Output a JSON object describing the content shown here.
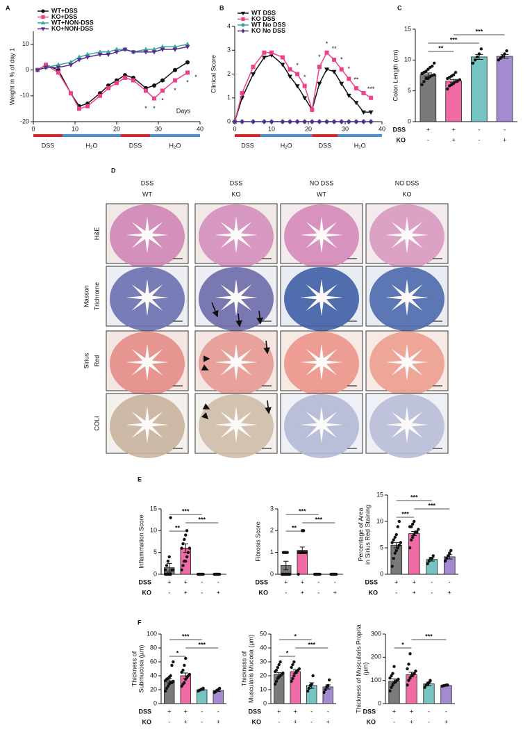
{
  "chart_data": [
    {
      "type": "line",
      "panel": "A",
      "ylabel": "Weight in % of day 1",
      "xlim": [
        0,
        40
      ],
      "xticks": [
        0,
        10,
        20,
        30,
        40
      ],
      "ylim": [
        -20,
        15
      ],
      "yticks": [
        -20,
        -10,
        0,
        10
      ],
      "x": [
        1,
        3,
        6,
        9,
        11,
        13,
        16,
        18,
        20,
        22,
        24,
        27,
        29,
        31,
        34,
        37
      ],
      "series": [
        {
          "name": "WT+DSS",
          "color": "#111111",
          "marker": "circle",
          "values": [
            0,
            2,
            0,
            -9,
            -14,
            -13,
            -9,
            -6,
            -4,
            -2,
            -3,
            -7,
            -6,
            -4,
            0,
            3
          ]
        },
        {
          "name": "KO+DSS",
          "color": "#ee3f8b",
          "marker": "square",
          "values": [
            0,
            2,
            -1,
            -9,
            -15,
            -14,
            -10,
            -7,
            -5,
            -3,
            -4,
            -8,
            -11,
            -8,
            -4,
            -1
          ]
        },
        {
          "name": "WT+NON-DSS",
          "color": "#3aa59a",
          "marker": "triangle-up",
          "values": [
            0,
            1,
            2,
            3,
            5,
            6,
            7,
            7,
            8,
            8,
            7,
            8,
            8,
            9,
            9,
            10
          ]
        },
        {
          "name": "KO+NON-DSS",
          "color": "#5b2c8f",
          "marker": "triangle-down",
          "values": [
            0,
            1,
            1,
            2,
            4,
            5,
            6,
            6,
            7,
            8,
            7,
            7,
            7,
            8,
            8,
            9
          ]
        }
      ],
      "phases": [
        {
          "label": "DSS",
          "start": 0,
          "end": 7,
          "color": "#e02424"
        },
        {
          "label": "H₂O",
          "start": 7,
          "end": 21,
          "color": "#4a90d0"
        },
        {
          "label": "DSS",
          "start": 21,
          "end": 28,
          "color": "#e02424"
        },
        {
          "label": "H₂O",
          "start": 28,
          "end": 40,
          "color": "#4a90d0"
        }
      ],
      "annotations": [
        {
          "text": "Days",
          "x": 36,
          "y": -16
        },
        {
          "text": "*",
          "x": 27,
          "y": -15
        },
        {
          "text": "*",
          "x": 29,
          "y": -15
        },
        {
          "text": "*",
          "x": 31,
          "y": -12
        },
        {
          "text": "*",
          "x": 34,
          "y": -8
        },
        {
          "text": "*",
          "x": 37,
          "y": -5
        },
        {
          "text": "*",
          "x": 39,
          "y": -3
        }
      ]
    },
    {
      "type": "line",
      "panel": "B",
      "ylabel": "Clinical Score",
      "xlim": [
        0,
        40
      ],
      "xticks": [
        0,
        10,
        20,
        30,
        40
      ],
      "ylim": [
        0,
        4
      ],
      "yticks": [
        0,
        1,
        2,
        3,
        4
      ],
      "x": [
        0,
        2,
        5,
        8,
        10,
        13,
        15,
        17,
        19,
        21,
        23,
        25,
        27,
        29,
        31,
        33,
        35,
        37
      ],
      "series": [
        {
          "name": "WT DSS",
          "color": "#111111",
          "marker": "triangle-down",
          "values": [
            0,
            1,
            2,
            2.7,
            2.8,
            2.4,
            1.9,
            1.5,
            1,
            0.5,
            1.6,
            2.2,
            2.1,
            1.6,
            1.1,
            0.8,
            0.4,
            0.4
          ]
        },
        {
          "name": "KO DSS",
          "color": "#ee3f8b",
          "marker": "square",
          "values": [
            0,
            1.2,
            2.3,
            2.9,
            2.9,
            2.7,
            2.2,
            2,
            1.5,
            0.5,
            2.3,
            2.9,
            2.6,
            2.2,
            1.8,
            1.4,
            1.2,
            1
          ]
        },
        {
          "name": "WT No DSS",
          "color": "#3aa59a",
          "marker": "circle",
          "values": [
            0,
            0,
            0,
            0,
            0,
            0,
            0,
            0,
            0,
            0,
            0,
            0,
            0,
            0,
            0,
            0,
            0,
            0
          ]
        },
        {
          "name": "KO No DSS",
          "color": "#5b2c8f",
          "marker": "diamond",
          "values": [
            0,
            0,
            0,
            0,
            0,
            0,
            0,
            0,
            0,
            0,
            0,
            0,
            0,
            0,
            0,
            0,
            0,
            0
          ]
        }
      ],
      "phases": [
        {
          "label": "DSS",
          "start": 0,
          "end": 7,
          "color": "#e02424"
        },
        {
          "label": "H₂O",
          "start": 7,
          "end": 21,
          "color": "#4a90d0"
        },
        {
          "label": "DSS",
          "start": 21,
          "end": 28,
          "color": "#e02424"
        },
        {
          "label": "H₂O",
          "start": 28,
          "end": 40,
          "color": "#4a90d0"
        }
      ],
      "annotations": [
        {
          "text": "*",
          "x": 17,
          "y": 2.35
        },
        {
          "text": "*",
          "x": 19,
          "y": 1.85
        },
        {
          "text": "*",
          "x": 23,
          "y": 2.7
        },
        {
          "text": "*",
          "x": 25,
          "y": 3.25
        },
        {
          "text": "**",
          "x": 27,
          "y": 3.05
        },
        {
          "text": "*",
          "x": 29,
          "y": 2.6
        },
        {
          "text": "*",
          "x": 31,
          "y": 2.2
        },
        {
          "text": "**",
          "x": 33,
          "y": 1.75
        },
        {
          "text": "***",
          "x": 37,
          "y": 1.35
        }
      ]
    },
    {
      "type": "bar",
      "panel": "C",
      "ylabel": [
        "Colon Length (cm)"
      ],
      "ylim": [
        0,
        15
      ],
      "yticks": [
        0,
        5,
        10,
        15
      ],
      "values": [
        7.6,
        6.6,
        10.5,
        10.6
      ],
      "errors": [
        0.3,
        0.25,
        0.4,
        0.3
      ],
      "colors": [
        "#7a7a7a",
        "#f06aa5",
        "#75c4c2",
        "#a48bd0"
      ],
      "points": [
        [
          6,
          6.5,
          7,
          7,
          7.3,
          7.5,
          7.6,
          7.8,
          8,
          8.2,
          8.5,
          8.8,
          9,
          9.5
        ],
        [
          5.3,
          5.8,
          6,
          6.2,
          6.5,
          6.6,
          6.8,
          7,
          7.2,
          7.4,
          7.6,
          8
        ],
        [
          9.5,
          10,
          10.5,
          11,
          11.8
        ],
        [
          10,
          10.3,
          10.6,
          11,
          11.5
        ]
      ],
      "brackets": [
        {
          "from": 0,
          "to": 1,
          "label": "**"
        },
        {
          "from": 0,
          "to": 2,
          "label": "***"
        },
        {
          "from": 1,
          "to": 3,
          "label": "***"
        }
      ],
      "conditions": [
        {
          "label": "DSS",
          "values": [
            "+",
            "+",
            "-",
            "-"
          ]
        },
        {
          "label": "KO",
          "values": [
            "-",
            "+",
            "-",
            "+"
          ]
        }
      ]
    },
    {
      "type": "bar",
      "panel": "E",
      "ylabel": [
        "Inflammation Score"
      ],
      "ylim": [
        0,
        15
      ],
      "yticks": [
        0,
        5,
        10,
        15
      ],
      "values": [
        1.5,
        6,
        0,
        0
      ],
      "errors": [
        1,
        1,
        0,
        0
      ],
      "colors": [
        "#7a7a7a",
        "#f06aa5",
        "#75c4c2",
        "#a48bd0"
      ],
      "points": [
        [
          0,
          0,
          0,
          0,
          0,
          1,
          1,
          1,
          2,
          3,
          4,
          13
        ],
        [
          1,
          2,
          3,
          3,
          4,
          5,
          6,
          6,
          7,
          8,
          9,
          10
        ],
        [
          0,
          0,
          0,
          0,
          0
        ],
        [
          0,
          0,
          0,
          0,
          0
        ]
      ],
      "brackets": [
        {
          "from": 0,
          "to": 1,
          "label": "**"
        },
        {
          "from": 1,
          "to": 3,
          "label": "***"
        },
        {
          "from": 0,
          "to": 2,
          "label": "***"
        }
      ],
      "conditions": [
        {
          "label": "DSS",
          "values": [
            "+",
            "+",
            "-",
            "-"
          ]
        },
        {
          "label": "KO",
          "values": [
            "-",
            "+",
            "-",
            "+"
          ]
        }
      ]
    },
    {
      "type": "bar",
      "ylabel": [
        "Fibrosis Score"
      ],
      "ylim": [
        0,
        3
      ],
      "yticks": [
        0,
        1,
        2,
        3
      ],
      "values": [
        0.4,
        1.1,
        0,
        0
      ],
      "errors": [
        0.2,
        0.15,
        0,
        0
      ],
      "colors": [
        "#7a7a7a",
        "#f06aa5",
        "#75c4c2",
        "#a48bd0"
      ],
      "points": [
        [
          0,
          0,
          0,
          0,
          0,
          0,
          0,
          0,
          1,
          1,
          1,
          1
        ],
        [
          0,
          1,
          1,
          1,
          1,
          1,
          1,
          1,
          1,
          1,
          2,
          2
        ],
        [
          0,
          0,
          0,
          0,
          0
        ],
        [
          0,
          0,
          0,
          0,
          0
        ]
      ],
      "brackets": [
        {
          "from": 0,
          "to": 1,
          "label": "**"
        },
        {
          "from": 1,
          "to": 3,
          "label": "***"
        },
        {
          "from": 0,
          "to": 2,
          "label": "***"
        }
      ],
      "conditions": [
        {
          "label": "DSS",
          "values": [
            "+",
            "+",
            "-",
            "-"
          ]
        },
        {
          "label": "KO",
          "values": [
            "-",
            "+",
            "-",
            "+"
          ]
        }
      ]
    },
    {
      "type": "bar",
      "ylabel": [
        "Percentage of Area",
        "in Sirius Red Staining"
      ],
      "ylim": [
        0,
        15
      ],
      "yticks": [
        0,
        5,
        10,
        15
      ],
      "values": [
        5.5,
        7.7,
        2.8,
        3.3
      ],
      "errors": [
        0.5,
        0.4,
        0.3,
        0.4
      ],
      "colors": [
        "#7a7a7a",
        "#f06aa5",
        "#75c4c2",
        "#a48bd0"
      ],
      "points": [
        [
          1.5,
          3,
          4,
          4.5,
          5,
          5.5,
          6,
          6,
          6.5,
          7,
          7.5,
          9,
          10
        ],
        [
          5,
          6.5,
          7,
          7.5,
          8,
          8,
          8.5,
          9,
          9,
          9.5,
          10
        ],
        [
          2,
          2.5,
          3,
          3,
          3.5
        ],
        [
          2.5,
          3,
          3.5,
          4,
          4.5
        ]
      ],
      "brackets": [
        {
          "from": 0,
          "to": 1,
          "label": "***"
        },
        {
          "from": 1,
          "to": 3,
          "label": "***"
        },
        {
          "from": 0,
          "to": 2,
          "label": "***"
        }
      ],
      "conditions": [
        {
          "label": "DSS",
          "values": [
            "+",
            "+",
            "-",
            "-"
          ]
        },
        {
          "label": "KO",
          "values": [
            "-",
            "+",
            "-",
            "+"
          ]
        }
      ]
    },
    {
      "type": "bar",
      "panel": "F",
      "ylabel": [
        "Thickness of",
        "Submucosa (µm)"
      ],
      "ylim": [
        0,
        100
      ],
      "yticks": [
        0,
        20,
        40,
        60,
        80,
        100
      ],
      "values": [
        33,
        40,
        20,
        19
      ],
      "errors": [
        3,
        4,
        1,
        1.5
      ],
      "colors": [
        "#7a7a7a",
        "#f06aa5",
        "#75c4c2",
        "#a48bd0"
      ],
      "points": [
        [
          18,
          22,
          25,
          28,
          30,
          30,
          32,
          33,
          35,
          36,
          38,
          40,
          55,
          60
        ],
        [
          25,
          28,
          30,
          35,
          38,
          40,
          42,
          45,
          48,
          55,
          65
        ],
        [
          18,
          19,
          20,
          21,
          22
        ],
        [
          16,
          17,
          19,
          20,
          22
        ]
      ],
      "brackets": [
        {
          "from": 0,
          "to": 1,
          "label": "*"
        },
        {
          "from": 1,
          "to": 3,
          "label": "***"
        },
        {
          "from": 0,
          "to": 2,
          "label": "***"
        }
      ],
      "conditions": [
        {
          "label": "DSS",
          "values": [
            "+",
            "+",
            "-",
            "-"
          ]
        },
        {
          "label": "KO",
          "values": [
            "-",
            "+",
            "-",
            "+"
          ]
        }
      ]
    },
    {
      "type": "bar",
      "ylabel": [
        "Thickness of",
        "Muscularis Mucosa (µm)"
      ],
      "ylim": [
        0,
        50
      ],
      "yticks": [
        0,
        10,
        20,
        30,
        40,
        50
      ],
      "values": [
        21,
        23,
        13,
        12
      ],
      "errors": [
        1.2,
        1.2,
        2,
        1.5
      ],
      "colors": [
        "#7a7a7a",
        "#f06aa5",
        "#75c4c2",
        "#a48bd0"
      ],
      "points": [
        [
          14,
          16,
          18,
          19,
          20,
          21,
          22,
          23,
          24,
          26,
          28,
          30
        ],
        [
          16,
          18,
          20,
          22,
          23,
          24,
          25,
          26,
          28,
          30
        ],
        [
          9,
          11,
          13,
          14,
          20
        ],
        [
          8,
          10,
          12,
          13,
          17
        ]
      ],
      "brackets": [
        {
          "from": 0,
          "to": 1,
          "label": "*"
        },
        {
          "from": 1,
          "to": 3,
          "label": "***"
        },
        {
          "from": 0,
          "to": 2,
          "label": "*"
        }
      ],
      "conditions": [
        {
          "label": "DSS",
          "values": [
            "+",
            "+",
            "-",
            "-"
          ]
        },
        {
          "label": "KO",
          "values": [
            "-",
            "+",
            "-",
            "+"
          ]
        }
      ]
    },
    {
      "type": "bar",
      "ylabel": [
        "Thickness of Muscularis Propria",
        "(µm)"
      ],
      "ylim": [
        0,
        300
      ],
      "yticks": [
        0,
        100,
        200,
        300
      ],
      "values": [
        97,
        125,
        85,
        78
      ],
      "errors": [
        9,
        10,
        8,
        2
      ],
      "colors": [
        "#7a7a7a",
        "#f06aa5",
        "#75c4c2",
        "#a48bd0"
      ],
      "points": [
        [
          55,
          70,
          80,
          90,
          95,
          100,
          105,
          110,
          120,
          130,
          160
        ],
        [
          80,
          100,
          110,
          120,
          125,
          130,
          140,
          150,
          170,
          215
        ],
        [
          70,
          80,
          85,
          90,
          100
        ],
        [
          75,
          77,
          78,
          80,
          80
        ]
      ],
      "brackets": [
        {
          "from": 0,
          "to": 1,
          "label": "*"
        },
        {
          "from": 1,
          "to": 3,
          "label": "***"
        }
      ],
      "conditions": [
        {
          "label": "DSS",
          "values": [
            "+",
            "+",
            "-",
            "-"
          ]
        },
        {
          "label": "KO",
          "values": [
            "-",
            "+",
            "-",
            "+"
          ]
        }
      ]
    }
  ],
  "histology": {
    "panel": "D",
    "columns": [
      [
        "DSS",
        "WT"
      ],
      [
        "DSS",
        "KO"
      ],
      [
        "NO DSS",
        "WT"
      ],
      [
        "NO DSS",
        "KO"
      ]
    ],
    "rows": [
      [
        "H&E"
      ],
      [
        "Masson",
        "Trichrome"
      ],
      [
        "Sirius",
        "Red"
      ],
      [
        "COLI"
      ]
    ]
  }
}
